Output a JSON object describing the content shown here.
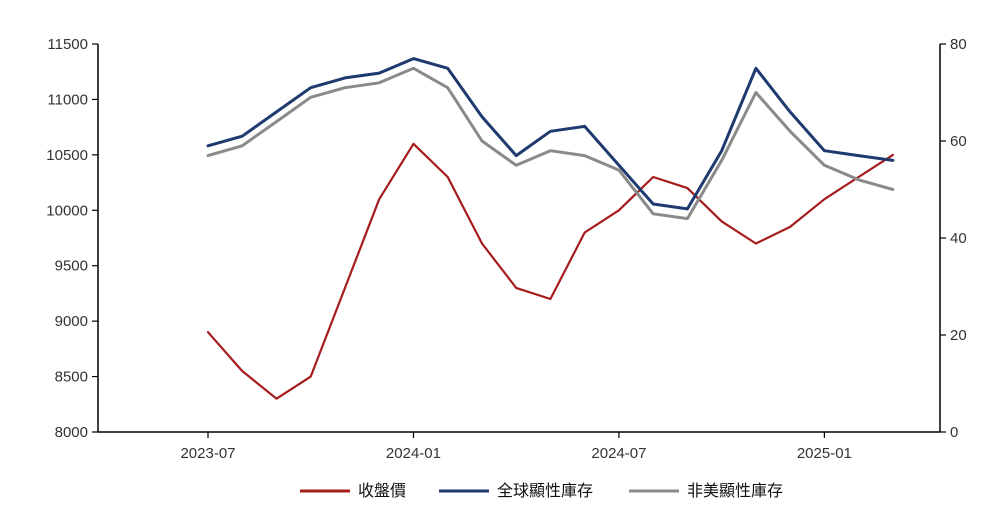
{
  "colors": {
    "price": "#a61b1b",
    "global": "#1f3a6e",
    "non_us": "#8a8a8a",
    "axis": "#000000",
    "bg": "#ffffff"
  },
  "chart_data": {
    "type": "line",
    "title": "",
    "xlabel": "",
    "y_left_ticks": [
      "11500",
      "11000",
      "10500",
      "10000",
      "9500",
      "9000",
      "8500",
      "8000"
    ],
    "y_right_ticks": [
      "80",
      "60",
      "40",
      "20",
      "0"
    ],
    "x_ticks": [
      "2023-07",
      "2024-01",
      "2024-07",
      "2025-01"
    ],
    "ylim_left": [
      8000,
      11500
    ],
    "ylim_right": [
      0,
      80
    ],
    "legend_position": "bottom",
    "series": [
      {
        "name": "收盤價",
        "axis": "left",
        "x": [
          "2023-07",
          "2023-08",
          "2023-09",
          "2023-10",
          "2023-11",
          "2023-12",
          "2024-01",
          "2024-02",
          "2024-03",
          "2024-04",
          "2024-05",
          "2024-06",
          "2024-07",
          "2024-08",
          "2024-09",
          "2024-10",
          "2024-11",
          "2024-12",
          "2025-01",
          "2025-02",
          "2025-03"
        ],
        "values": [
          8900,
          8550,
          8300,
          8500,
          9300,
          10100,
          10600,
          10300,
          9700,
          9300,
          9200,
          9800,
          10000,
          10300,
          10200,
          9900,
          9700,
          9850,
          10100,
          10300,
          10500
        ]
      },
      {
        "name": "全球顯性庫存",
        "axis": "right",
        "x": [
          "2023-07",
          "2023-08",
          "2023-09",
          "2023-10",
          "2023-11",
          "2023-12",
          "2024-01",
          "2024-02",
          "2024-03",
          "2024-04",
          "2024-05",
          "2024-06",
          "2024-07",
          "2024-08",
          "2024-09",
          "2024-10",
          "2024-11",
          "2024-12",
          "2025-01",
          "2025-02",
          "2025-03"
        ],
        "values": [
          59,
          61,
          66,
          71,
          73,
          74,
          77,
          75,
          65,
          57,
          62,
          63,
          55,
          47,
          46,
          58,
          75,
          66,
          58,
          57,
          56
        ]
      },
      {
        "name": "非美顯性庫存",
        "axis": "right",
        "x": [
          "2023-07",
          "2023-08",
          "2023-09",
          "2023-10",
          "2023-11",
          "2023-12",
          "2024-01",
          "2024-02",
          "2024-03",
          "2024-04",
          "2024-05",
          "2024-06",
          "2024-07",
          "2024-08",
          "2024-09",
          "2024-10",
          "2024-11",
          "2024-12",
          "2025-01",
          "2025-02",
          "2025-03"
        ],
        "values": [
          57,
          59,
          64,
          69,
          71,
          72,
          75,
          71,
          60,
          55,
          58,
          57,
          54,
          45,
          44,
          56,
          70,
          62,
          55,
          52,
          50
        ]
      }
    ]
  }
}
